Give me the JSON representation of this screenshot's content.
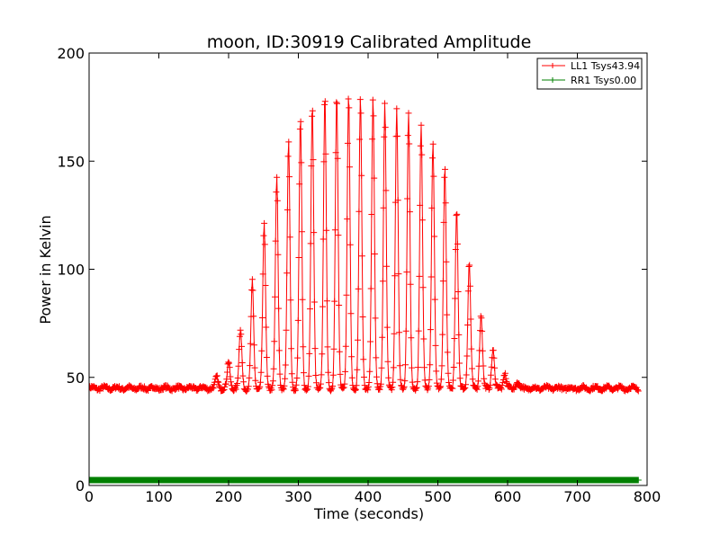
{
  "chart_data": {
    "type": "line",
    "title": "moon, ID:30919 Calibrated Amplitude",
    "xlabel": "Time (seconds)",
    "ylabel": "Power in Kelvin",
    "xlim": [
      0,
      800
    ],
    "ylim": [
      0,
      200
    ],
    "xticks": [
      0,
      100,
      200,
      300,
      400,
      500,
      600,
      700,
      800
    ],
    "yticks": [
      0,
      50,
      100,
      150,
      200
    ],
    "legend_position": "top-right",
    "series": [
      {
        "name": "LL1 Tsys43.94",
        "color": "#ff0000",
        "marker": "+",
        "baseline": 45,
        "x_start": 0,
        "x_end": 788,
        "scan_period_s": 16,
        "peak_centers_s": [
          183,
          200,
          217,
          234,
          251,
          269,
          286,
          303,
          320,
          338,
          355,
          372,
          389,
          407,
          424,
          441,
          458,
          476,
          493,
          510,
          527,
          545,
          562,
          579,
          596,
          614
        ],
        "peak_values": [
          50,
          57,
          72,
          94,
          120,
          142,
          159,
          169,
          175,
          179,
          180,
          180,
          179,
          178,
          176,
          174,
          172,
          167,
          159,
          147,
          127,
          103,
          79,
          63,
          52,
          48
        ]
      },
      {
        "name": "RR1 Tsys0.00",
        "color": "#008000",
        "marker": "+",
        "baseline": 2.5,
        "x_start": 0,
        "x_end": 788
      }
    ]
  }
}
